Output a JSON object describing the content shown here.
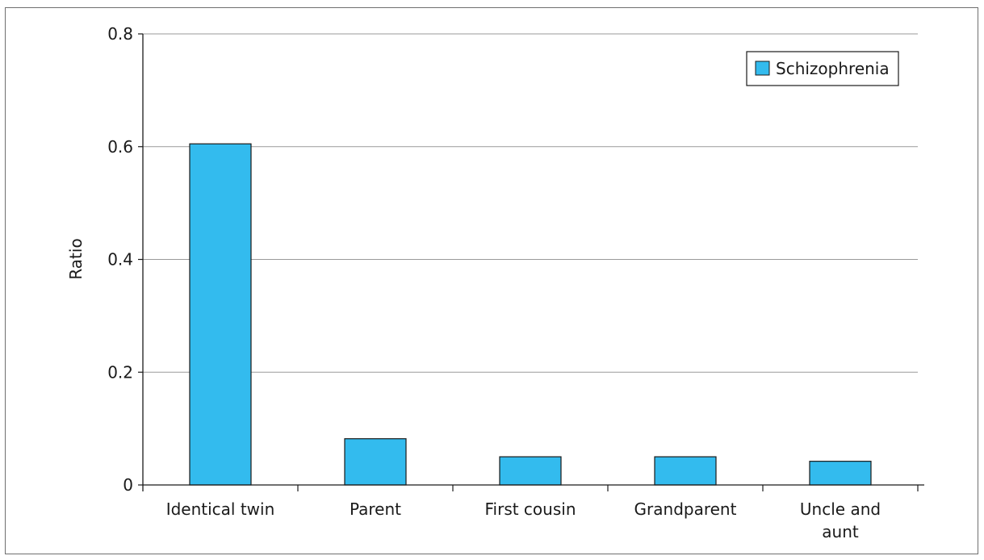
{
  "chart_data": {
    "type": "bar",
    "categories": [
      "Identical twin",
      "Parent",
      "First cousin",
      "Grandparent",
      "Uncle and aunt"
    ],
    "category_lines": [
      [
        "Identical twin"
      ],
      [
        "Parent"
      ],
      [
        "First cousin"
      ],
      [
        "Grandparent"
      ],
      [
        "Uncle and",
        "aunt"
      ]
    ],
    "series": [
      {
        "name": "Schizophrenia",
        "values": [
          0.605,
          0.082,
          0.05,
          0.05,
          0.042
        ]
      }
    ],
    "title": "",
    "xlabel": "",
    "ylabel": "Ratio",
    "ylim": [
      0,
      0.8
    ],
    "yticks": [
      0,
      0.2,
      0.4,
      0.6,
      0.8
    ],
    "ytick_labels": [
      "0",
      "0.2",
      "0.4",
      "0.6",
      "0.8"
    ],
    "grid": true,
    "legend_position": "top-right",
    "colors": {
      "bar_fill": "#33bbee",
      "bar_stroke": "#1a1a1a",
      "grid": "#9a9a9a",
      "axis": "#1a1a1a"
    }
  }
}
